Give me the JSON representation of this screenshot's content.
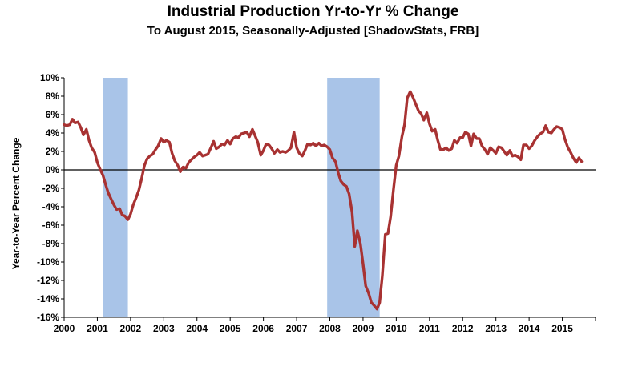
{
  "chart_data": {
    "type": "line",
    "title": "Industrial Production Yr-to-Yr % Change",
    "subtitle": "To August 2015, Seasonally-Adjusted [ShadowStats, FRB]",
    "ylabel": "Year-to-Year Percent Change",
    "xlabel": "",
    "xlim": [
      2000,
      2016
    ],
    "ylim": [
      -16,
      10
    ],
    "yticks": [
      10,
      8,
      6,
      4,
      2,
      0,
      -2,
      -4,
      -6,
      -8,
      -10,
      -12,
      -14,
      -16
    ],
    "ytick_labels": [
      "10%",
      "8%",
      "6%",
      "4%",
      "2%",
      "0%",
      "-2%",
      "-4%",
      "-6%",
      "-8%",
      "-10%",
      "-12%",
      "-14%",
      "-16%"
    ],
    "xticks": [
      2000,
      2001,
      2002,
      2003,
      2004,
      2005,
      2006,
      2007,
      2008,
      2009,
      2010,
      2011,
      2012,
      2013,
      2014,
      2015
    ],
    "xtick_labels": [
      "2000",
      "2001",
      "2002",
      "2003",
      "2004",
      "2005",
      "2006",
      "2007",
      "2008",
      "2009",
      "2010",
      "2011",
      "2012",
      "2013",
      "2014",
      "2015"
    ],
    "grid": false,
    "legend": "none",
    "colors": {
      "line": "#a83232",
      "recession": "#a9c4e8",
      "zero_line": "#000000"
    },
    "recessions": [
      {
        "start": 2001.17,
        "end": 2001.92
      },
      {
        "start": 2007.92,
        "end": 2009.5
      }
    ],
    "series": [
      {
        "points": [
          [
            2000.0,
            4.9
          ],
          [
            2000.08,
            4.8
          ],
          [
            2000.17,
            4.9
          ],
          [
            2000.25,
            5.5
          ],
          [
            2000.33,
            5.1
          ],
          [
            2000.42,
            5.2
          ],
          [
            2000.5,
            4.6
          ],
          [
            2000.58,
            3.8
          ],
          [
            2000.67,
            4.4
          ],
          [
            2000.75,
            3.2
          ],
          [
            2000.83,
            2.4
          ],
          [
            2000.92,
            1.9
          ],
          [
            2001.0,
            0.8
          ],
          [
            2001.08,
            0.1
          ],
          [
            2001.17,
            -0.6
          ],
          [
            2001.25,
            -1.6
          ],
          [
            2001.33,
            -2.5
          ],
          [
            2001.42,
            -3.2
          ],
          [
            2001.5,
            -3.8
          ],
          [
            2001.58,
            -4.3
          ],
          [
            2001.67,
            -4.2
          ],
          [
            2001.75,
            -4.9
          ],
          [
            2001.83,
            -5.0
          ],
          [
            2001.92,
            -5.4
          ],
          [
            2002.0,
            -4.8
          ],
          [
            2002.08,
            -3.8
          ],
          [
            2002.17,
            -3.0
          ],
          [
            2002.25,
            -2.2
          ],
          [
            2002.33,
            -1.0
          ],
          [
            2002.42,
            0.5
          ],
          [
            2002.5,
            1.2
          ],
          [
            2002.58,
            1.5
          ],
          [
            2002.67,
            1.7
          ],
          [
            2002.75,
            2.2
          ],
          [
            2002.83,
            2.6
          ],
          [
            2002.92,
            3.4
          ],
          [
            2003.0,
            3.0
          ],
          [
            2003.08,
            3.2
          ],
          [
            2003.17,
            3.0
          ],
          [
            2003.25,
            1.8
          ],
          [
            2003.33,
            1.0
          ],
          [
            2003.42,
            0.5
          ],
          [
            2003.5,
            -0.2
          ],
          [
            2003.58,
            0.3
          ],
          [
            2003.67,
            0.2
          ],
          [
            2003.75,
            0.8
          ],
          [
            2003.83,
            1.1
          ],
          [
            2003.92,
            1.4
          ],
          [
            2004.0,
            1.6
          ],
          [
            2004.08,
            1.9
          ],
          [
            2004.17,
            1.5
          ],
          [
            2004.25,
            1.6
          ],
          [
            2004.33,
            1.7
          ],
          [
            2004.42,
            2.4
          ],
          [
            2004.5,
            3.1
          ],
          [
            2004.58,
            2.3
          ],
          [
            2004.67,
            2.5
          ],
          [
            2004.75,
            2.8
          ],
          [
            2004.83,
            2.7
          ],
          [
            2004.92,
            3.2
          ],
          [
            2005.0,
            2.8
          ],
          [
            2005.08,
            3.4
          ],
          [
            2005.17,
            3.6
          ],
          [
            2005.25,
            3.5
          ],
          [
            2005.33,
            3.9
          ],
          [
            2005.42,
            4.0
          ],
          [
            2005.5,
            4.1
          ],
          [
            2005.58,
            3.6
          ],
          [
            2005.67,
            4.4
          ],
          [
            2005.75,
            3.7
          ],
          [
            2005.83,
            3.0
          ],
          [
            2005.92,
            1.6
          ],
          [
            2006.0,
            2.1
          ],
          [
            2006.08,
            2.8
          ],
          [
            2006.17,
            2.7
          ],
          [
            2006.25,
            2.3
          ],
          [
            2006.33,
            1.8
          ],
          [
            2006.42,
            2.2
          ],
          [
            2006.5,
            1.9
          ],
          [
            2006.58,
            2.0
          ],
          [
            2006.67,
            1.9
          ],
          [
            2006.75,
            2.1
          ],
          [
            2006.83,
            2.4
          ],
          [
            2006.92,
            4.1
          ],
          [
            2007.0,
            2.4
          ],
          [
            2007.08,
            1.8
          ],
          [
            2007.17,
            1.5
          ],
          [
            2007.25,
            2.1
          ],
          [
            2007.33,
            2.8
          ],
          [
            2007.42,
            2.7
          ],
          [
            2007.5,
            2.9
          ],
          [
            2007.58,
            2.6
          ],
          [
            2007.67,
            2.9
          ],
          [
            2007.75,
            2.6
          ],
          [
            2007.83,
            2.7
          ],
          [
            2007.92,
            2.5
          ],
          [
            2008.0,
            2.2
          ],
          [
            2008.08,
            1.3
          ],
          [
            2008.17,
            0.9
          ],
          [
            2008.25,
            -0.3
          ],
          [
            2008.33,
            -1.2
          ],
          [
            2008.42,
            -1.6
          ],
          [
            2008.5,
            -1.8
          ],
          [
            2008.58,
            -2.6
          ],
          [
            2008.67,
            -4.6
          ],
          [
            2008.75,
            -8.3
          ],
          [
            2008.83,
            -6.6
          ],
          [
            2008.92,
            -8.0
          ],
          [
            2009.0,
            -10.2
          ],
          [
            2009.08,
            -12.6
          ],
          [
            2009.17,
            -13.4
          ],
          [
            2009.25,
            -14.4
          ],
          [
            2009.33,
            -14.7
          ],
          [
            2009.42,
            -15.1
          ],
          [
            2009.5,
            -14.4
          ],
          [
            2009.58,
            -11.5
          ],
          [
            2009.67,
            -7.0
          ],
          [
            2009.75,
            -6.9
          ],
          [
            2009.83,
            -5.1
          ],
          [
            2009.92,
            -2.0
          ],
          [
            2010.0,
            0.5
          ],
          [
            2010.08,
            1.5
          ],
          [
            2010.17,
            3.6
          ],
          [
            2010.25,
            4.9
          ],
          [
            2010.33,
            7.8
          ],
          [
            2010.42,
            8.5
          ],
          [
            2010.5,
            7.9
          ],
          [
            2010.58,
            7.2
          ],
          [
            2010.67,
            6.4
          ],
          [
            2010.75,
            6.1
          ],
          [
            2010.83,
            5.4
          ],
          [
            2010.92,
            6.2
          ],
          [
            2011.0,
            5.0
          ],
          [
            2011.08,
            4.2
          ],
          [
            2011.17,
            4.4
          ],
          [
            2011.25,
            3.2
          ],
          [
            2011.33,
            2.2
          ],
          [
            2011.42,
            2.2
          ],
          [
            2011.5,
            2.4
          ],
          [
            2011.58,
            2.1
          ],
          [
            2011.67,
            2.3
          ],
          [
            2011.75,
            3.2
          ],
          [
            2011.83,
            2.9
          ],
          [
            2011.92,
            3.5
          ],
          [
            2012.0,
            3.5
          ],
          [
            2012.08,
            4.1
          ],
          [
            2012.17,
            3.9
          ],
          [
            2012.25,
            2.6
          ],
          [
            2012.33,
            3.9
          ],
          [
            2012.42,
            3.4
          ],
          [
            2012.5,
            3.4
          ],
          [
            2012.58,
            2.6
          ],
          [
            2012.67,
            2.2
          ],
          [
            2012.75,
            1.7
          ],
          [
            2012.83,
            2.4
          ],
          [
            2012.92,
            2.1
          ],
          [
            2013.0,
            1.8
          ],
          [
            2013.08,
            2.5
          ],
          [
            2013.17,
            2.4
          ],
          [
            2013.25,
            2.0
          ],
          [
            2013.33,
            1.6
          ],
          [
            2013.42,
            2.1
          ],
          [
            2013.5,
            1.5
          ],
          [
            2013.58,
            1.6
          ],
          [
            2013.67,
            1.4
          ],
          [
            2013.75,
            1.1
          ],
          [
            2013.83,
            2.7
          ],
          [
            2013.92,
            2.7
          ],
          [
            2014.0,
            2.3
          ],
          [
            2014.08,
            2.6
          ],
          [
            2014.17,
            3.2
          ],
          [
            2014.25,
            3.6
          ],
          [
            2014.33,
            3.9
          ],
          [
            2014.42,
            4.1
          ],
          [
            2014.5,
            4.8
          ],
          [
            2014.58,
            4.1
          ],
          [
            2014.67,
            4.0
          ],
          [
            2014.75,
            4.4
          ],
          [
            2014.83,
            4.7
          ],
          [
            2014.92,
            4.6
          ],
          [
            2015.0,
            4.4
          ],
          [
            2015.08,
            3.3
          ],
          [
            2015.17,
            2.4
          ],
          [
            2015.25,
            1.9
          ],
          [
            2015.33,
            1.3
          ],
          [
            2015.42,
            0.8
          ],
          [
            2015.5,
            1.3
          ],
          [
            2015.58,
            0.9
          ]
        ]
      }
    ]
  }
}
